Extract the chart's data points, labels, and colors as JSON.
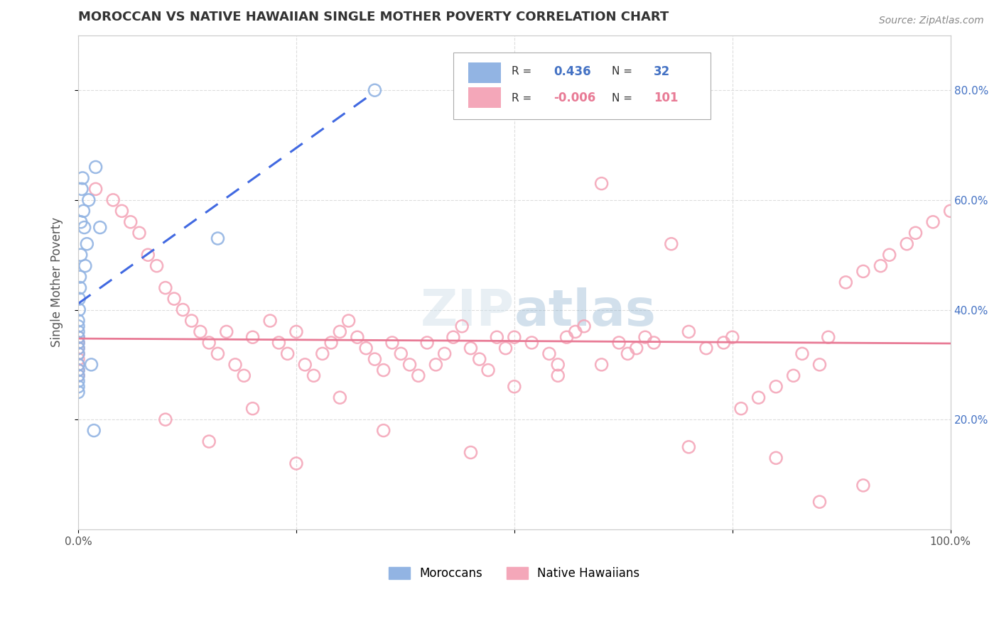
{
  "title": "MOROCCAN VS NATIVE HAWAIIAN SINGLE MOTHER POVERTY CORRELATION CHART",
  "source": "Source: ZipAtlas.com",
  "ylabel": "Single Mother Poverty",
  "xlim": [
    0,
    1.0
  ],
  "ylim": [
    0,
    0.9
  ],
  "moroccan_R": 0.436,
  "moroccan_N": 32,
  "hawaiian_R": -0.006,
  "hawaiian_N": 101,
  "moroccan_color": "#92b4e3",
  "hawaiian_color": "#f4a7b9",
  "moroccan_line_color": "#4169e1",
  "hawaiian_line_color": "#e87a95",
  "moroccan_scatter_x": [
    0.0,
    0.0,
    0.0,
    0.0,
    0.0,
    0.0,
    0.0,
    0.0,
    0.0,
    0.0,
    0.0,
    0.0,
    0.0,
    0.001,
    0.001,
    0.002,
    0.002,
    0.003,
    0.003,
    0.004,
    0.005,
    0.006,
    0.007,
    0.008,
    0.01,
    0.012,
    0.015,
    0.018,
    0.02,
    0.025,
    0.16,
    0.34
  ],
  "moroccan_scatter_y": [
    0.35,
    0.36,
    0.37,
    0.33,
    0.34,
    0.38,
    0.32,
    0.3,
    0.29,
    0.28,
    0.27,
    0.26,
    0.25,
    0.4,
    0.42,
    0.44,
    0.46,
    0.56,
    0.5,
    0.62,
    0.64,
    0.58,
    0.55,
    0.48,
    0.52,
    0.6,
    0.3,
    0.18,
    0.66,
    0.55,
    0.53,
    0.8
  ],
  "hawaiian_scatter_x": [
    0.0,
    0.0,
    0.0,
    0.0,
    0.0,
    0.0,
    0.0,
    0.0,
    0.02,
    0.04,
    0.05,
    0.06,
    0.07,
    0.08,
    0.09,
    0.1,
    0.11,
    0.12,
    0.13,
    0.14,
    0.15,
    0.16,
    0.17,
    0.18,
    0.19,
    0.2,
    0.22,
    0.23,
    0.24,
    0.25,
    0.26,
    0.27,
    0.28,
    0.29,
    0.3,
    0.31,
    0.32,
    0.33,
    0.34,
    0.35,
    0.36,
    0.37,
    0.38,
    0.39,
    0.4,
    0.41,
    0.42,
    0.43,
    0.44,
    0.45,
    0.46,
    0.47,
    0.48,
    0.49,
    0.5,
    0.52,
    0.54,
    0.55,
    0.56,
    0.57,
    0.58,
    0.6,
    0.62,
    0.63,
    0.64,
    0.65,
    0.66,
    0.68,
    0.7,
    0.72,
    0.74,
    0.75,
    0.76,
    0.78,
    0.8,
    0.82,
    0.83,
    0.85,
    0.86,
    0.88,
    0.9,
    0.92,
    0.93,
    0.95,
    0.96,
    0.98,
    1.0,
    0.1,
    0.2,
    0.3,
    0.5,
    0.55,
    0.6,
    0.7,
    0.8,
    0.85,
    0.9,
    0.15,
    0.25,
    0.35,
    0.45
  ],
  "hawaiian_scatter_y": [
    0.35,
    0.34,
    0.33,
    0.32,
    0.31,
    0.3,
    0.29,
    0.28,
    0.62,
    0.6,
    0.58,
    0.56,
    0.54,
    0.5,
    0.48,
    0.44,
    0.42,
    0.4,
    0.38,
    0.36,
    0.34,
    0.32,
    0.36,
    0.3,
    0.28,
    0.35,
    0.38,
    0.34,
    0.32,
    0.36,
    0.3,
    0.28,
    0.32,
    0.34,
    0.36,
    0.38,
    0.35,
    0.33,
    0.31,
    0.29,
    0.34,
    0.32,
    0.3,
    0.28,
    0.34,
    0.3,
    0.32,
    0.35,
    0.37,
    0.33,
    0.31,
    0.29,
    0.35,
    0.33,
    0.35,
    0.34,
    0.32,
    0.3,
    0.35,
    0.36,
    0.37,
    0.63,
    0.34,
    0.32,
    0.33,
    0.35,
    0.34,
    0.52,
    0.36,
    0.33,
    0.34,
    0.35,
    0.22,
    0.24,
    0.26,
    0.28,
    0.32,
    0.3,
    0.35,
    0.45,
    0.47,
    0.48,
    0.5,
    0.52,
    0.54,
    0.56,
    0.58,
    0.2,
    0.22,
    0.24,
    0.26,
    0.28,
    0.3,
    0.15,
    0.13,
    0.05,
    0.08,
    0.16,
    0.12,
    0.18,
    0.14
  ],
  "background_color": "#ffffff",
  "grid_color": "#dddddd",
  "watermark": "ZIPatlas",
  "legend_moroccan_label": "Moroccans",
  "legend_hawaiian_label": "Native Hawaiians",
  "r_value_color": "#4472c4",
  "r_value_pink": "#e87a95"
}
